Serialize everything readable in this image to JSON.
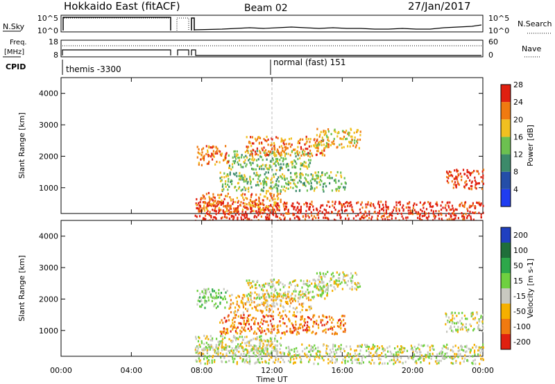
{
  "header": {
    "title": "Hokkaido East (fitACF)",
    "beam": "Beam 02",
    "date": "27/Jan/2017"
  },
  "top_panel": {
    "nsky_label": "N.Sky",
    "nsky_ticks": [
      "10^5",
      "10^0"
    ],
    "nsearch_label": "N.Search",
    "nsearch_ticks": [
      "10^5",
      "10^0"
    ],
    "freq_label": "Freq.",
    "freq_unit": "[MHz]",
    "freq_ticks": [
      "18",
      "8"
    ],
    "nave_label": "Nave",
    "nave_ticks": [
      "60",
      "0"
    ],
    "cpid_label": "CPID",
    "cpid_entries": [
      {
        "label": "themis -3300",
        "start_hour": 0
      },
      {
        "label": "normal (fast) 151",
        "start_hour": 12
      }
    ]
  },
  "chart_data": [
    {
      "type": "heatmap",
      "title": "Power",
      "ylabel": "Slant Range [km]",
      "ylim": [
        180,
        4500
      ],
      "yticks": [
        "1000",
        "2000",
        "3000",
        "4000"
      ],
      "xlim_hours": [
        0,
        24
      ],
      "colorbar_label": "Power [dB]",
      "colorbar_ticks": [
        "4",
        "8",
        "12",
        "16",
        "20",
        "24",
        "28"
      ],
      "colors": [
        "#1f3df0",
        "#244ea8",
        "#3c8a6a",
        "#6cc050",
        "#f0c020",
        "#f07a10",
        "#e02010"
      ],
      "echo_bands": [
        {
          "start_hour": 7.6,
          "end_hour": 24,
          "range_km": 280,
          "level": 6
        },
        {
          "start_hour": 7.6,
          "end_hour": 12.5,
          "range_km": 560,
          "level": 5
        },
        {
          "start_hour": 9.0,
          "end_hour": 16.2,
          "range_km": 1220,
          "level": 3
        },
        {
          "start_hour": 9.5,
          "end_hour": 14.2,
          "range_km": 1900,
          "level": 3
        },
        {
          "start_hour": 10.5,
          "end_hour": 15.2,
          "range_km": 2350,
          "level": 5
        },
        {
          "start_hour": 7.7,
          "end_hour": 9.5,
          "range_km": 2050,
          "level": 5
        },
        {
          "start_hour": 21.8,
          "end_hour": 24,
          "range_km": 1300,
          "level": 6
        },
        {
          "start_hour": 14.5,
          "end_hour": 17.0,
          "range_km": 2600,
          "level": 4
        }
      ]
    },
    {
      "type": "heatmap",
      "title": "Velocity",
      "ylabel": "Slant Range [km]",
      "ylim": [
        180,
        4500
      ],
      "yticks": [
        "1000",
        "2000",
        "3000",
        "4000"
      ],
      "xlim_hours": [
        0,
        24
      ],
      "colorbar_label": "Velocity [m s-1]",
      "colorbar_ticks": [
        "200",
        "100",
        "50",
        "15",
        "-15",
        "-50",
        "-100",
        "-200"
      ],
      "colors": [
        "#2040c0",
        "#1f6f3a",
        "#2da84a",
        "#6fd040",
        "#c8c8c0",
        "#f5b000",
        "#f07a10",
        "#e02010"
      ],
      "echo_bands": [
        {
          "start_hour": 7.6,
          "end_hour": 24,
          "range_km": 280,
          "level": 4
        },
        {
          "start_hour": 7.6,
          "end_hour": 12.5,
          "range_km": 560,
          "level": 4
        },
        {
          "start_hour": 9.0,
          "end_hour": 16.2,
          "range_km": 1220,
          "level": 6
        },
        {
          "start_hour": 9.5,
          "end_hour": 14.2,
          "range_km": 1900,
          "level": 5
        },
        {
          "start_hour": 10.5,
          "end_hour": 15.2,
          "range_km": 2350,
          "level": 4
        },
        {
          "start_hour": 7.7,
          "end_hour": 9.5,
          "range_km": 2050,
          "level": 3
        },
        {
          "start_hour": 21.8,
          "end_hour": 24,
          "range_km": 1300,
          "level": 4
        },
        {
          "start_hour": 14.5,
          "end_hour": 17.0,
          "range_km": 2600,
          "level": 4
        }
      ]
    }
  ],
  "x_axis": {
    "ticks": [
      "00:00",
      "04:00",
      "08:00",
      "12:00",
      "16:00",
      "20:00",
      "00:00"
    ],
    "label": "Time UT"
  }
}
